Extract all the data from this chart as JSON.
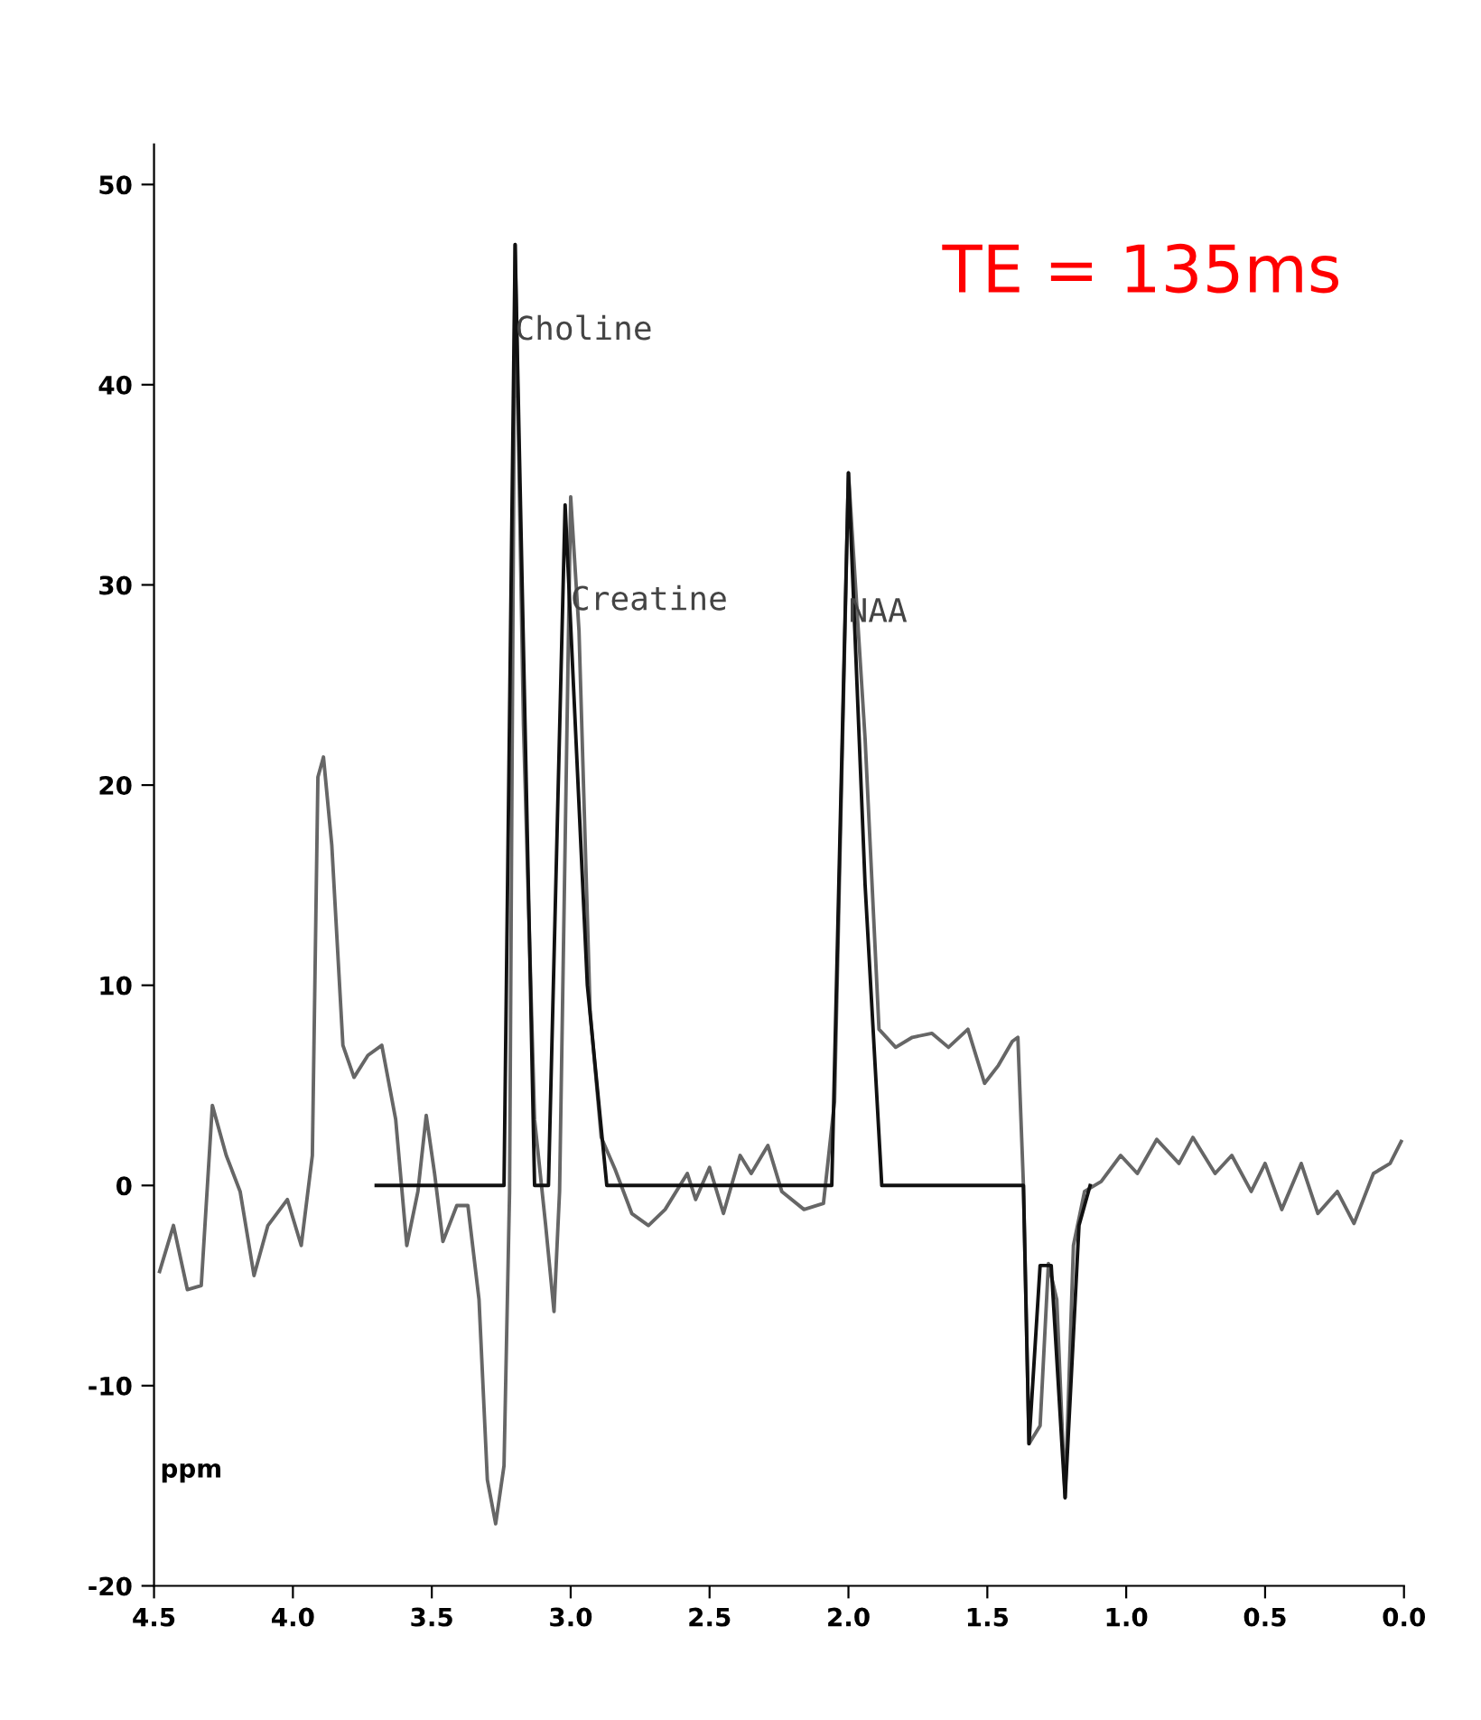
{
  "chart_data": {
    "type": "line",
    "xlabel": "ppm",
    "xlim": [
      4.5,
      0.0
    ],
    "xticks": [
      {
        "value": 4.5,
        "label": "4.5"
      },
      {
        "value": 4.0,
        "label": "4.0"
      },
      {
        "value": 3.5,
        "label": "3.5"
      },
      {
        "value": 3.0,
        "label": "3.0"
      },
      {
        "value": 2.5,
        "label": "2.5"
      },
      {
        "value": 2.0,
        "label": "2.0"
      },
      {
        "value": 1.5,
        "label": "1.5"
      },
      {
        "value": 1.0,
        "label": "1.0"
      },
      {
        "value": 0.5,
        "label": "0.5"
      },
      {
        "value": 0.0,
        "label": "0.0"
      }
    ],
    "ylim": [
      -20,
      52
    ],
    "yticks": [
      -20,
      -10,
      0,
      10,
      20,
      30,
      40,
      50
    ],
    "grid": false,
    "legend": false,
    "marker": "none",
    "line_style": "solid",
    "series": [
      {
        "color": "#666666",
        "x": [
          4.48,
          4.43,
          4.38,
          4.33,
          4.29,
          4.24,
          4.19,
          4.14,
          4.09,
          4.02,
          3.97,
          3.93,
          3.91,
          3.89,
          3.86,
          3.82,
          3.78,
          3.73,
          3.68,
          3.63,
          3.59,
          3.55,
          3.52,
          3.49,
          3.46,
          3.41,
          3.37,
          3.33,
          3.3,
          3.27,
          3.24,
          3.22,
          3.2,
          3.17,
          3.13,
          3.09,
          3.06,
          3.04,
          3.0,
          2.97,
          2.93,
          2.89,
          2.84,
          2.78,
          2.72,
          2.66,
          2.58,
          2.55,
          2.5,
          2.45,
          2.39,
          2.35,
          2.29,
          2.24,
          2.16,
          2.09,
          2.05,
          2.0,
          1.94,
          1.89,
          1.83,
          1.77,
          1.7,
          1.64,
          1.57,
          1.51,
          1.46,
          1.41,
          1.39,
          1.37,
          1.35,
          1.31,
          1.28,
          1.25,
          1.22,
          1.19,
          1.15,
          1.09,
          1.02,
          0.96,
          0.89,
          0.81,
          0.76,
          0.68,
          0.62,
          0.55,
          0.5,
          0.44,
          0.37,
          0.31,
          0.24,
          0.18,
          0.11,
          0.05,
          0.01
        ],
        "values": [
          -4.3,
          -2,
          -5.2,
          -5,
          4,
          1.5,
          -0.3,
          -4.5,
          -2,
          -0.7,
          -3,
          1.5,
          20.4,
          21.4,
          17,
          7,
          5.4,
          6.5,
          7,
          3.3,
          -3,
          -0.3,
          3.5,
          0.6,
          -2.8,
          -1,
          -1,
          -5.7,
          -14.7,
          -16.9,
          -14,
          -0.3,
          47,
          23,
          3.3,
          -2,
          -6.3,
          -0.3,
          34.4,
          27.7,
          8.7,
          2.4,
          0.8,
          -1.4,
          -2,
          -1.2,
          0.6,
          -0.7,
          0.9,
          -1.4,
          1.5,
          0.6,
          2,
          -0.3,
          -1.2,
          -0.9,
          4.2,
          35.6,
          22.3,
          7.8,
          6.9,
          7.4,
          7.6,
          6.9,
          7.8,
          5.1,
          6,
          7.2,
          7.4,
          0,
          -12.9,
          -12,
          -3.9,
          -5.7,
          -15.6,
          -3,
          -0.3,
          0.2,
          1.5,
          0.6,
          2.3,
          1.1,
          2.4,
          0.6,
          1.5,
          -0.3,
          1.1,
          -1.2,
          1.1,
          -1.4,
          -0.3,
          -1.9,
          0.6,
          1.1,
          2.2
        ]
      },
      {
        "color": "#111111",
        "x": [
          3.7,
          3.24,
          3.2,
          3.13,
          3.08,
          3.02,
          2.94,
          2.87,
          2.06,
          2.0,
          1.94,
          1.88,
          1.37,
          1.35,
          1.31,
          1.27,
          1.22,
          1.17,
          1.13
        ],
        "values": [
          0,
          0,
          47,
          0,
          0,
          34,
          10,
          0,
          0,
          35.6,
          15,
          0,
          0,
          -12.9,
          -4,
          -4,
          -15.6,
          -2,
          0
        ]
      }
    ],
    "annotations": [
      {
        "text": "Choline",
        "x": 3.2,
        "y": 42.7
      },
      {
        "text": "Creatine",
        "x": 3.0,
        "y": 29.2
      },
      {
        "text": "NAA",
        "x": 2.0,
        "y": 28.6
      },
      "TE = 135ms"
    ]
  }
}
